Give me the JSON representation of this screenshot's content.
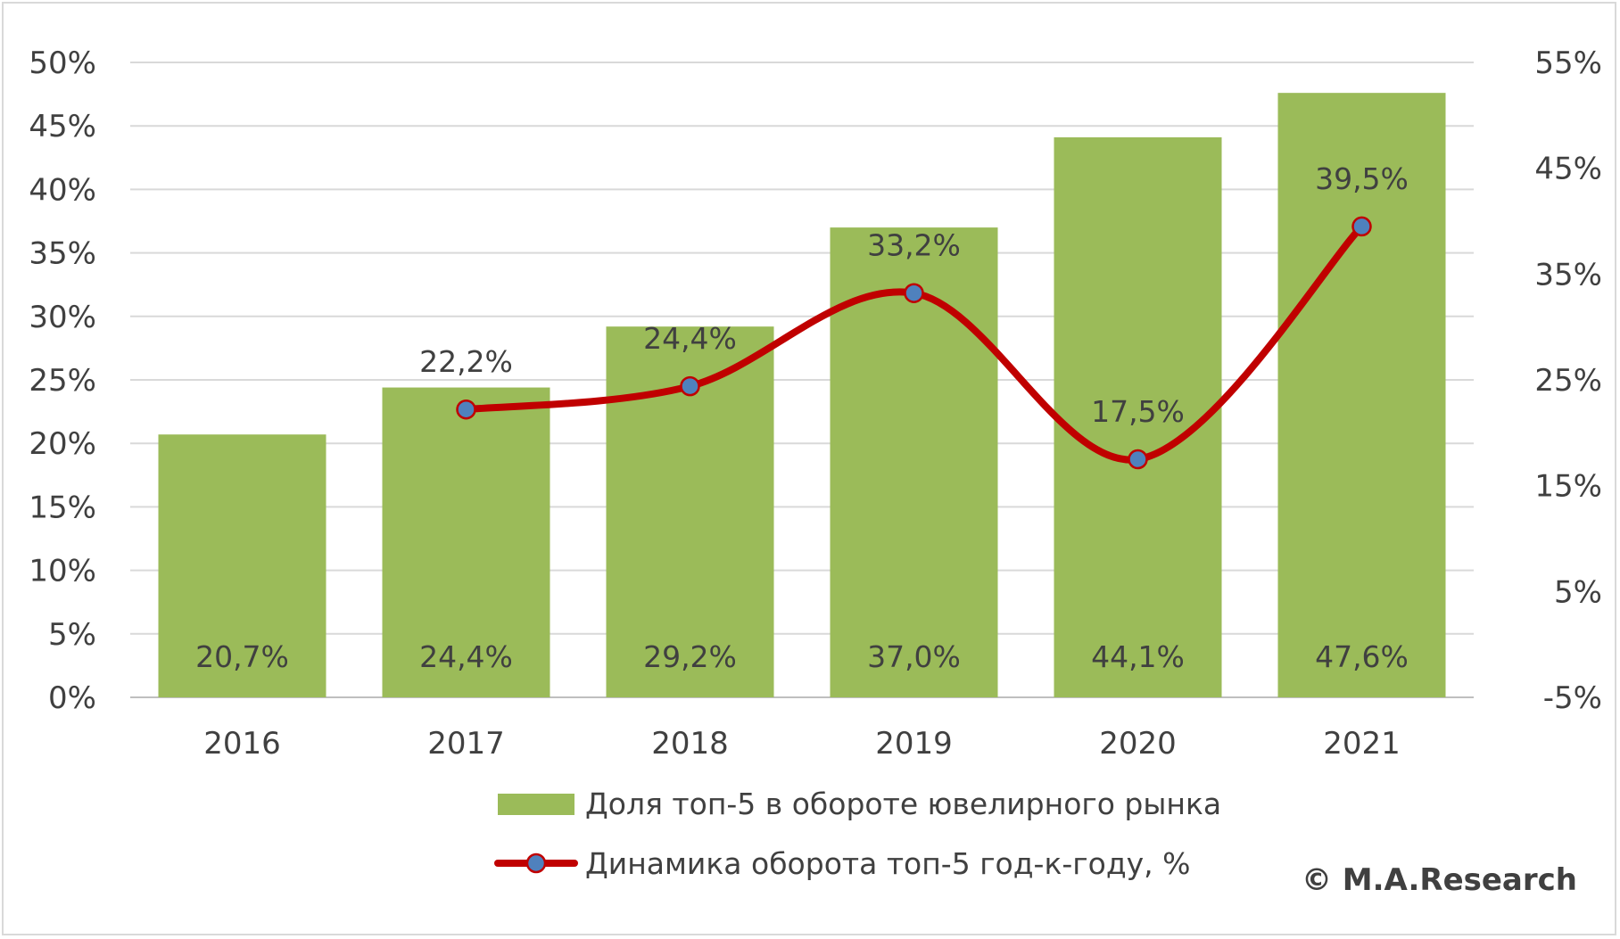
{
  "chart_data": {
    "type": "bar+line",
    "categories": [
      "2016",
      "2017",
      "2018",
      "2019",
      "2020",
      "2021"
    ],
    "series": [
      {
        "name": "Доля топ-5 в обороте ювелирного рынка",
        "type": "bar",
        "axis": "left",
        "values": [
          20.7,
          24.4,
          29.2,
          37.0,
          44.1,
          47.6
        ],
        "labels": [
          "20,7%",
          "24,4%",
          "29,2%",
          "37,0%",
          "44,1%",
          "47,6%"
        ],
        "color": "#9bbb59"
      },
      {
        "name": "Динамика оборота топ-5 год-к-году, %",
        "type": "line",
        "axis": "right",
        "values": [
          null,
          22.2,
          24.4,
          33.2,
          17.5,
          39.5
        ],
        "labels": [
          "",
          "22,2%",
          "24,4%",
          "33,2%",
          "17,5%",
          "39,5%"
        ],
        "color": "#c00000",
        "marker_color": "#4f81bd"
      }
    ],
    "y_left": {
      "range": [
        0,
        50
      ],
      "ticks": [
        "0%",
        "5%",
        "10%",
        "15%",
        "20%",
        "25%",
        "30%",
        "35%",
        "40%",
        "45%",
        "50%"
      ]
    },
    "y_right": {
      "range": [
        -5,
        55
      ],
      "ticks": [
        "-5%",
        "5%",
        "15%",
        "25%",
        "35%",
        "45%",
        "55%"
      ]
    },
    "grid": true,
    "legend": "bottom",
    "title": "",
    "xlabel": "",
    "ylabel": ""
  },
  "copyright": "© M.A.Research"
}
